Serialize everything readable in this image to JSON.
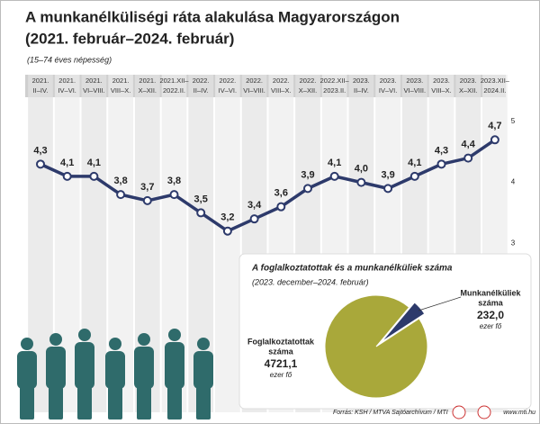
{
  "chart_data": [
    {
      "type": "line",
      "title": [
        "A munkanélküliségi ráta alakulása Magyarországon",
        "(2021. február–2024. február)"
      ],
      "note": "(15–74 éves népesség)",
      "categories": [
        [
          "2021.",
          "II–IV."
        ],
        [
          "2021.",
          "IV–VI."
        ],
        [
          "2021.",
          "VI–VIII."
        ],
        [
          "2021.",
          "VIII–X."
        ],
        [
          "2021.",
          "X–XII."
        ],
        [
          "2021.XII–",
          "2022.II."
        ],
        [
          "2022.",
          "II–IV."
        ],
        [
          "2022.",
          "IV–VI."
        ],
        [
          "2022.",
          "VI–VIII."
        ],
        [
          "2022.",
          "VIII–X."
        ],
        [
          "2022.",
          "X–XII."
        ],
        [
          "2022.XII–",
          "2023.II."
        ],
        [
          "2023.",
          "II–IV."
        ],
        [
          "2023.",
          "IV–VI."
        ],
        [
          "2023.",
          "VI–VIII."
        ],
        [
          "2023.",
          "VIII–X."
        ],
        [
          "2023.",
          "X–XII."
        ],
        [
          "2023.XII–",
          "2024.II."
        ]
      ],
      "values": [
        4.3,
        4.1,
        4.1,
        3.8,
        3.7,
        3.8,
        3.5,
        3.2,
        3.4,
        3.6,
        3.9,
        4.1,
        4.0,
        3.9,
        4.1,
        4.3,
        4.4,
        4.7
      ],
      "value_labels": [
        "4,3",
        "4,1",
        "4,1",
        "3,8",
        "3,7",
        "3,8",
        "3,5",
        "3,2",
        "3,4",
        "3,6",
        "3,9",
        "4,1",
        "4,0",
        "3,9",
        "4,1",
        "4,3",
        "4,4",
        "4,7"
      ],
      "color": "#2d3a6b",
      "ylim": [
        2.5,
        5.4
      ],
      "yticks": [
        3,
        4,
        5
      ]
    },
    {
      "type": "pie",
      "title": "A foglalkoztatottak és a munkanélküliek száma",
      "subtitle": "(2023. december–2024. február)",
      "categories": [
        [
          "Munkanélküliek",
          "száma"
        ],
        [
          "Foglalkoztatottak",
          "száma"
        ]
      ],
      "values": [
        232.0,
        4721.1
      ],
      "value_labels": [
        "232,0",
        "4721,1"
      ],
      "unit": "ezer fő",
      "colors": [
        "#2d3a6b",
        "#a9a83a"
      ]
    }
  ],
  "footer": {
    "source": "Forrás: KSH / MTVA Sajtóarchívum / MTI",
    "url": "www.mti.hu"
  }
}
